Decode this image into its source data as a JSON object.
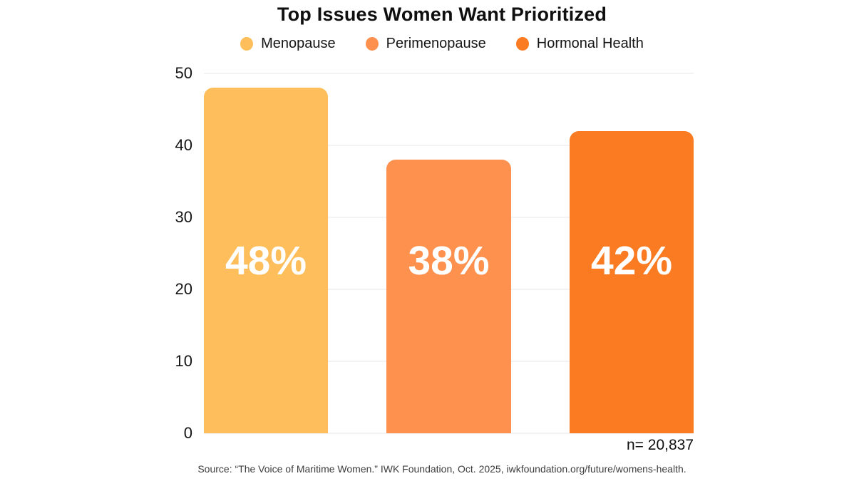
{
  "chart_data": {
    "type": "bar",
    "title": "Top Issues Women Want Prioritized",
    "categories": [
      "Menopause",
      "Perimenopause",
      "Hormonal Health"
    ],
    "values": [
      48,
      38,
      42
    ],
    "value_labels": [
      "48%",
      "38%",
      "42%"
    ],
    "colors": [
      "#FDBE5B",
      "#FD914D",
      "#FA7B21"
    ],
    "value_label_color": "#ffffff",
    "xlabel": "",
    "ylabel": "",
    "ylim": [
      0,
      50
    ],
    "yticks": [
      0,
      10,
      20,
      30,
      40,
      50
    ],
    "grid": true,
    "gridline_color": "#E7E7E7",
    "legend_position": "top",
    "sample_size_label": "n= 20,837",
    "source": "Source: “The Voice of Maritime Women.” IWK Foundation, Oct. 2025, iwkfoundation.org/future/womens-health."
  }
}
